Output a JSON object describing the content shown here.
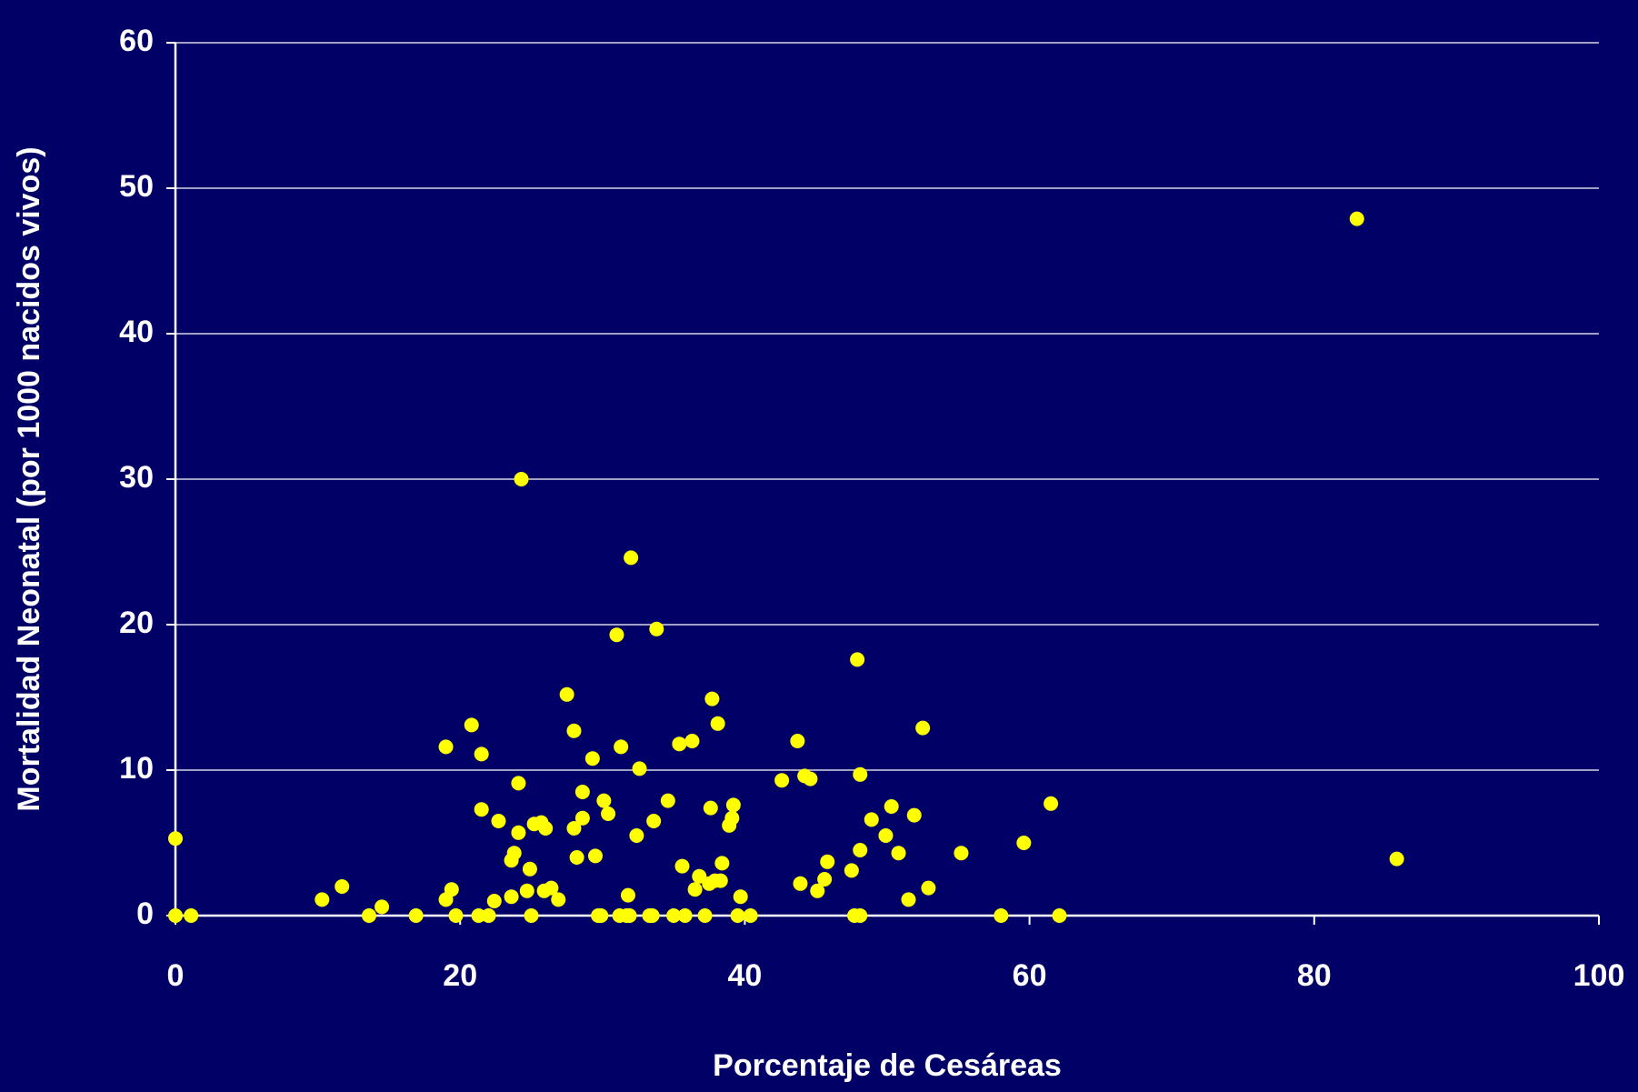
{
  "chart_data": {
    "type": "scatter",
    "x_label": "Porcentaje de Cesáreas",
    "y_label": "Mortalidad Neonatal (por 1000 nacidos vivos)",
    "xlim": [
      0,
      100
    ],
    "xticks": [
      0,
      20,
      40,
      60,
      80,
      100
    ],
    "ylim": [
      0,
      60
    ],
    "yticks": [
      0,
      10,
      20,
      30,
      40,
      50,
      60
    ],
    "grid": true,
    "background": "#000066",
    "color": "#ffff00",
    "x": [
      0,
      0,
      1.1,
      10.3,
      11.7,
      13.6,
      14.5,
      16.9,
      19.0,
      19.0,
      19.4,
      19.7,
      20.8,
      21.3,
      21.5,
      21.5,
      22.0,
      22.4,
      22.7,
      23.6,
      23.6,
      23.8,
      24.1,
      24.1,
      24.3,
      24.7,
      24.9,
      25.0,
      25.2,
      25.7,
      25.9,
      26.0,
      26.4,
      26.9,
      27.5,
      28.0,
      28.0,
      28.2,
      28.6,
      28.6,
      29.3,
      29.5,
      29.7,
      29.9,
      30.1,
      30.4,
      31.0,
      31.2,
      31.3,
      31.7,
      31.8,
      32.0,
      31.9,
      32.4,
      32.6,
      33.3,
      33.6,
      33.8,
      33.5,
      34.6,
      35.0,
      35.4,
      35.6,
      35.8,
      36.3,
      36.5,
      36.8,
      37.2,
      37.6,
      37.7,
      37.5,
      37.9,
      38.1,
      38.3,
      38.4,
      38.9,
      39.1,
      39.2,
      39.5,
      39.7,
      40.4,
      42.6,
      43.7,
      43.9,
      44.2,
      44.6,
      45.1,
      45.6,
      45.8,
      47.5,
      47.7,
      47.9,
      48.1,
      48.1,
      48.1,
      48.9,
      49.9,
      50.3,
      50.8,
      51.5,
      51.9,
      52.5,
      52.9,
      55.2,
      58.0,
      59.6,
      61.5,
      62.1,
      83.0,
      85.8
    ],
    "values": [
      5.3,
      0,
      0,
      1.1,
      2.0,
      0,
      0.6,
      0,
      11.6,
      1.1,
      1.8,
      0,
      13.1,
      0,
      11.1,
      7.3,
      0,
      1.0,
      6.5,
      3.8,
      1.3,
      4.3,
      9.1,
      5.7,
      30.0,
      1.7,
      3.2,
      0,
      6.3,
      6.4,
      1.7,
      6.0,
      1.9,
      1.1,
      15.2,
      12.7,
      6.0,
      4.0,
      8.5,
      6.7,
      10.8,
      4.1,
      0,
      0,
      7.9,
      7.0,
      19.3,
      0,
      11.6,
      0,
      1.4,
      24.6,
      0,
      5.5,
      10.1,
      0,
      6.5,
      19.7,
      0,
      7.9,
      0,
      11.8,
      3.4,
      0,
      12.0,
      1.8,
      2.7,
      0,
      7.4,
      14.9,
      2.2,
      2.4,
      13.2,
      2.4,
      3.6,
      6.2,
      6.7,
      7.6,
      0,
      1.3,
      0,
      9.3,
      12.0,
      2.2,
      9.6,
      9.4,
      1.7,
      2.5,
      3.7,
      3.1,
      0,
      17.6,
      0,
      9.7,
      4.5,
      6.6,
      5.5,
      7.5,
      4.3,
      1.1,
      6.9,
      12.9,
      1.9,
      4.3,
      0,
      5.0,
      7.7,
      0,
      47.9,
      3.9
    ]
  }
}
